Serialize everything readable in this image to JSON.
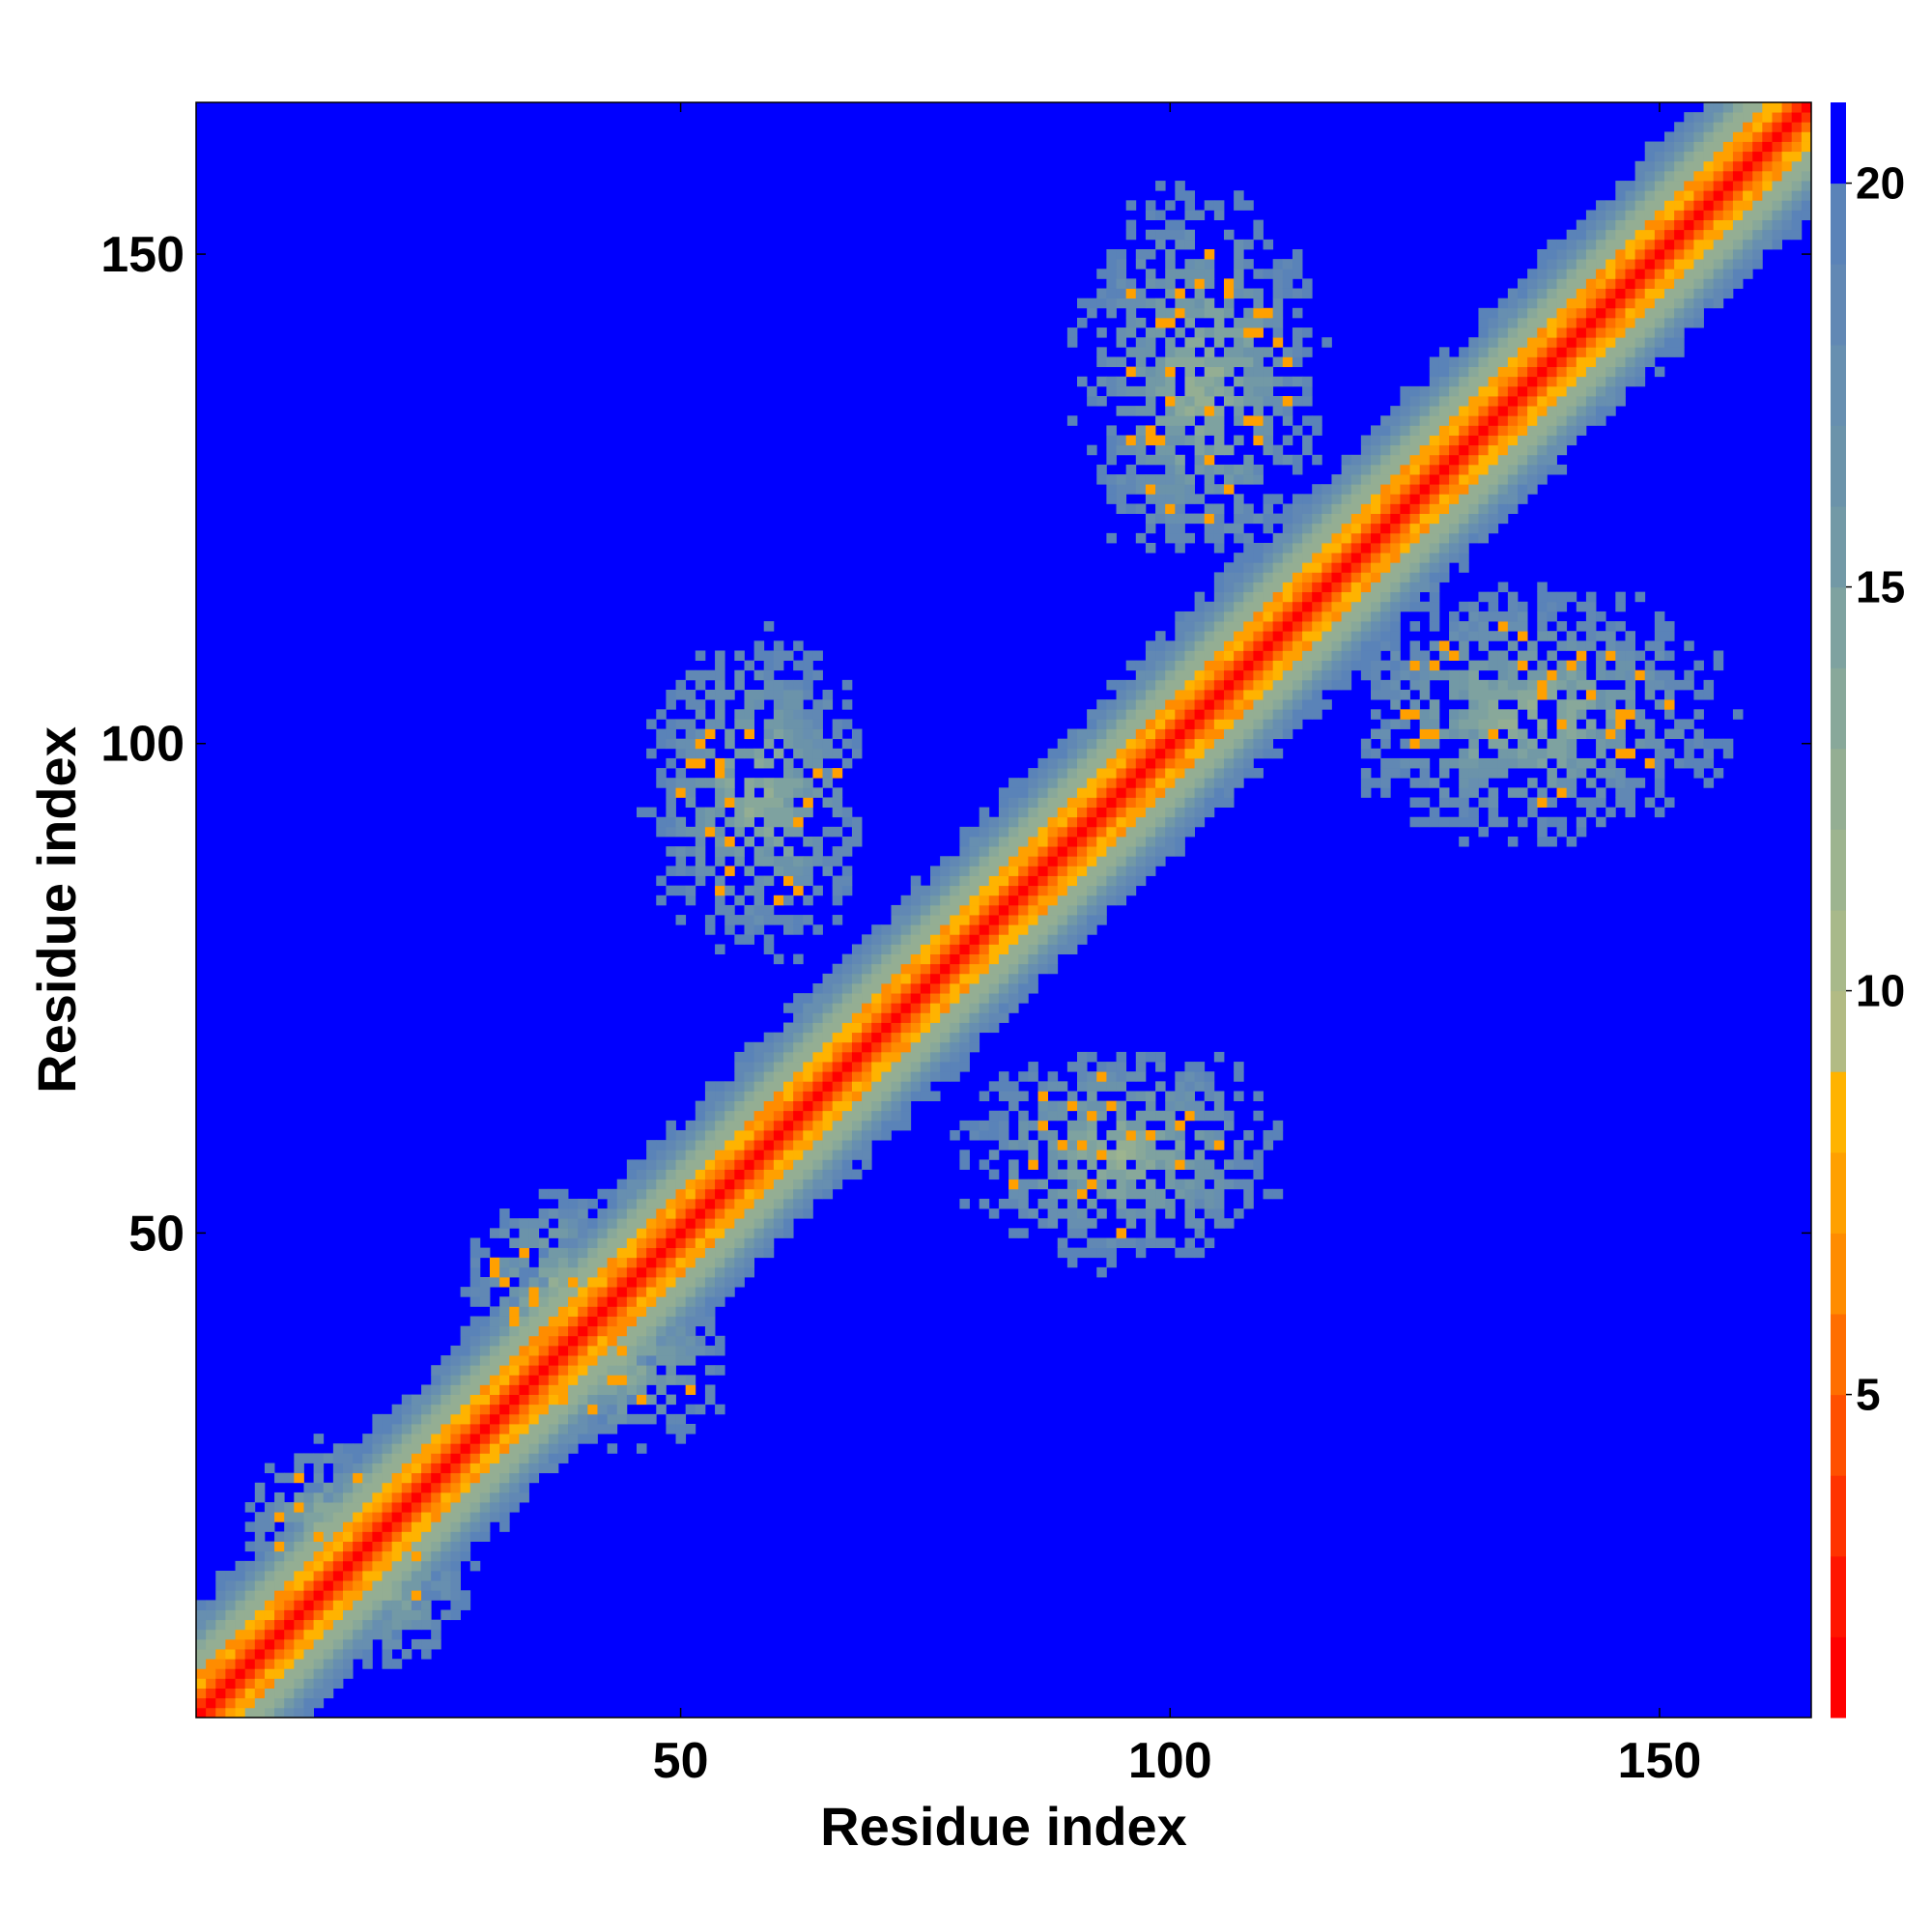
{
  "chart_data": {
    "type": "heatmap",
    "title": "",
    "xlabel": "Residue index",
    "ylabel": "Residue index",
    "n_residues": 165,
    "xlim": [
      1,
      165
    ],
    "ylim": [
      1,
      165
    ],
    "x_ticks": [
      50,
      100,
      150
    ],
    "x_tick_labels": [
      "50",
      "100",
      "150"
    ],
    "y_ticks": [
      50,
      100,
      150
    ],
    "y_tick_labels": [
      "50",
      "100",
      "150"
    ],
    "colorbar": {
      "range": [
        1,
        21
      ],
      "ticks": [
        5,
        10,
        15,
        20
      ],
      "tick_labels": [
        "5",
        "10",
        "15",
        "20"
      ],
      "bands": [
        {
          "from": 1,
          "to": 2,
          "color": "#ff0000"
        },
        {
          "from": 2,
          "to": 3,
          "color": "#ff1500"
        },
        {
          "from": 3,
          "to": 4,
          "color": "#ff3300"
        },
        {
          "from": 4,
          "to": 5,
          "color": "#ff5000"
        },
        {
          "from": 5,
          "to": 6,
          "color": "#ff6e00"
        },
        {
          "from": 6,
          "to": 7,
          "color": "#ff8c00"
        },
        {
          "from": 7,
          "to": 8,
          "color": "#ffa000"
        },
        {
          "from": 8,
          "to": 9,
          "color": "#ffb300"
        },
        {
          "from": 9,
          "to": 10,
          "color": "#b2bb84"
        },
        {
          "from": 10,
          "to": 11,
          "color": "#a8b98a"
        },
        {
          "from": 11,
          "to": 12,
          "color": "#9db48f"
        },
        {
          "from": 12,
          "to": 13,
          "color": "#94ae93"
        },
        {
          "from": 13,
          "to": 14,
          "color": "#88a89a"
        },
        {
          "from": 14,
          "to": 15,
          "color": "#7ea2a0"
        },
        {
          "from": 15,
          "to": 16,
          "color": "#7299a6"
        },
        {
          "from": 16,
          "to": 17,
          "color": "#6b93aa"
        },
        {
          "from": 17,
          "to": 18,
          "color": "#678fb0"
        },
        {
          "from": 18,
          "to": 19,
          "color": "#6188b4"
        },
        {
          "from": 19,
          "to": 20,
          "color": "#5a83b8"
        },
        {
          "from": 20,
          "to": 21,
          "color": "#0000ff"
        }
      ]
    },
    "background_color": "#0000ff",
    "structure": {
      "diagonal_band": {
        "core_color": "#ff0000",
        "halfwidth_residues": 12
      },
      "off_diagonal_contact_regions": [
        {
          "x_range": [
            44,
            68
          ],
          "y_range": [
            78,
            113
          ],
          "mirror_of": "x[78,113] y[44,68]"
        },
        {
          "x_range": [
            78,
            113
          ],
          "y_range": [
            44,
            68
          ]
        },
        {
          "x_range": [
            90,
            117
          ],
          "y_range": [
            120,
            162
          ]
        },
        {
          "x_range": [
            120,
            162
          ],
          "y_range": [
            90,
            117
          ]
        },
        {
          "x_range": [
            25,
            45
          ],
          "y_range": [
            30,
            55
          ]
        },
        {
          "x_range": [
            10,
            25
          ],
          "y_range": [
            5,
            25
          ]
        }
      ],
      "color_by_distance": "low values red/orange near diagonal, 9-19 grey-green/steel-blue shell, >=20 blue"
    }
  }
}
